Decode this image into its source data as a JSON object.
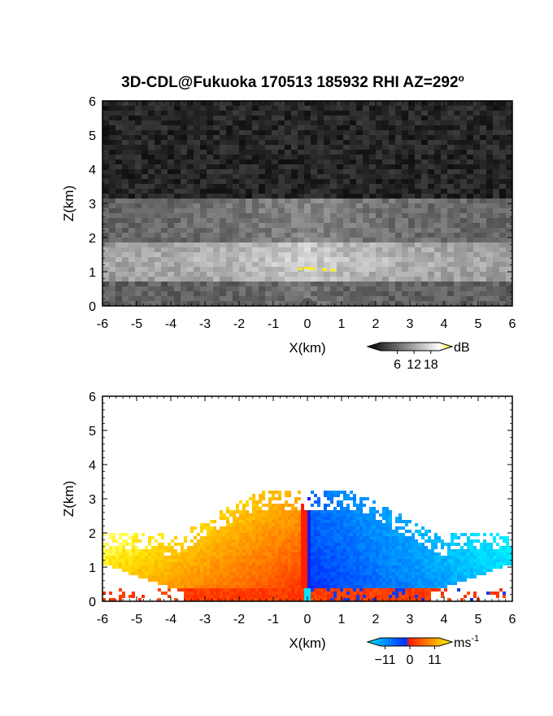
{
  "title": "3D-CDL@Fukuoka 170513 185932 RHI AZ=292",
  "title_superscript": "o",
  "chart_data": [
    {
      "type": "heatmap",
      "panel": "reflectivity",
      "xlabel": "X(km)",
      "ylabel": "Z(km)",
      "xlim": [
        -6,
        6
      ],
      "ylim": [
        0,
        6
      ],
      "x_ticks": [
        -6,
        -5,
        -4,
        -3,
        -2,
        -1,
        0,
        1,
        2,
        3,
        4,
        5,
        6
      ],
      "y_ticks": [
        0,
        1,
        2,
        3,
        4,
        5,
        6
      ],
      "colorbar": {
        "unit": "dB",
        "tick_values": [
          6,
          12,
          18
        ],
        "range": [
          0,
          21
        ],
        "colors": [
          "#000000",
          "#ffffff",
          "#ffee00"
        ]
      },
      "layers": [
        {
          "z_range": [
            0,
            0.7
          ],
          "level": "medium-dark"
        },
        {
          "z_range": [
            0.7,
            1.9
          ],
          "level": "bright"
        },
        {
          "z_range": [
            1.9,
            3.2
          ],
          "level": "medium"
        },
        {
          "z_range": [
            3.2,
            6
          ],
          "level": "dark-noise"
        }
      ]
    },
    {
      "type": "heatmap",
      "panel": "doppler-velocity",
      "xlabel": "X(km)",
      "ylabel": "Z(km)",
      "xlim": [
        -6,
        6
      ],
      "ylim": [
        0,
        6
      ],
      "x_ticks": [
        -6,
        -5,
        -4,
        -3,
        -2,
        -1,
        0,
        1,
        2,
        3,
        4,
        5,
        6
      ],
      "y_ticks": [
        0,
        1,
        2,
        3,
        4,
        5,
        6
      ],
      "colorbar": {
        "unit": "ms",
        "unit_superscript": "-1",
        "tick_values": [
          -11,
          0,
          11
        ],
        "range": [
          -13,
          13
        ],
        "colors": [
          "#00e5ff",
          "#0030ff",
          "#ff2000",
          "#ff9000",
          "#ffff00"
        ]
      },
      "echo_top_km": 3.2,
      "sign_change_x_km": 0
    }
  ]
}
